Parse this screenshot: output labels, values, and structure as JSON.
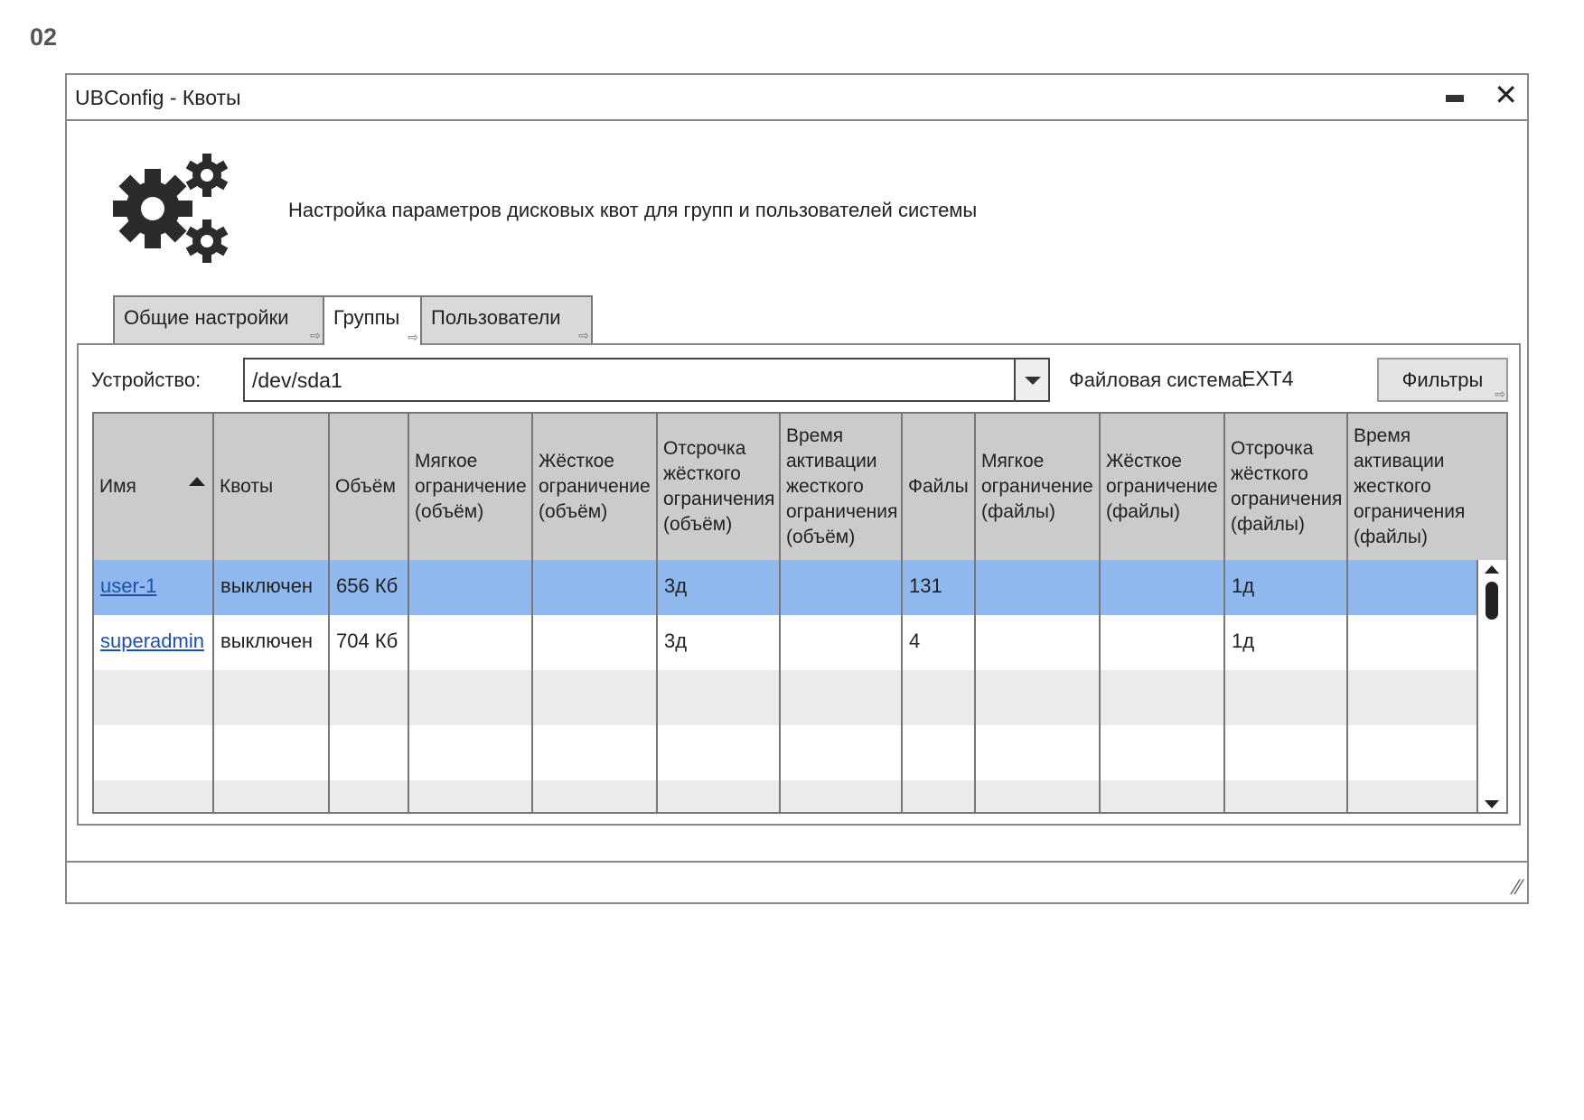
{
  "page_label": "02",
  "window": {
    "title": "UBConfig - Квоты",
    "minimize_icon": "minimize-icon",
    "close_icon": "close-icon",
    "close_glyph": "✕"
  },
  "header": {
    "icon": "gears-icon",
    "description": "Настройка параметров дисковых квот для групп и пользователей системы"
  },
  "tabs": [
    {
      "label": "Общие настройки",
      "active": false
    },
    {
      "label": "Группы",
      "active": true
    },
    {
      "label": "Пользователи",
      "active": false
    }
  ],
  "toolbar": {
    "device_label": "Устройство:",
    "device_value": "/dev/sda1",
    "fs_label": "Файловая система:",
    "fs_value": "EXT4",
    "filters_label": "Фильтры"
  },
  "table": {
    "columns": [
      "Имя",
      "Квоты",
      "Объём",
      "Мягкое\nограничение\n(объём)",
      "Жёсткое\nограничение\n(объём)",
      "Отсрочка\nжёсткого\nограничения\n(объём)",
      "Время\nактивации\nжесткого\nограничения\n(объём)",
      "Файлы",
      "Мягкое\nограничение\n(файлы)",
      "Жёсткое\nограничение\n(файлы)",
      "Отсрочка\nжёсткого\nограничения\n(файлы)",
      "Время\nактивации\nжесткого\nограничения\n(файлы)"
    ],
    "sort_column": "Имя",
    "sort_direction": "asc",
    "rows": [
      [
        "user-1",
        "выключен",
        "656 Кб",
        "",
        "",
        "3д",
        "",
        "131",
        "",
        "",
        "1д",
        ""
      ],
      [
        "superadmin",
        "выключен",
        "704 Кб",
        "",
        "",
        "3д",
        "",
        "4",
        "",
        "",
        "1д",
        ""
      ]
    ],
    "selected_row": 0,
    "colors": {
      "selected": "#8fb8ee",
      "header": "#cbcbcb",
      "alt_row": "#ebebeb",
      "link": "#1f50a8"
    }
  },
  "statusbar": {
    "resize_icon": "resize-grip-icon"
  }
}
